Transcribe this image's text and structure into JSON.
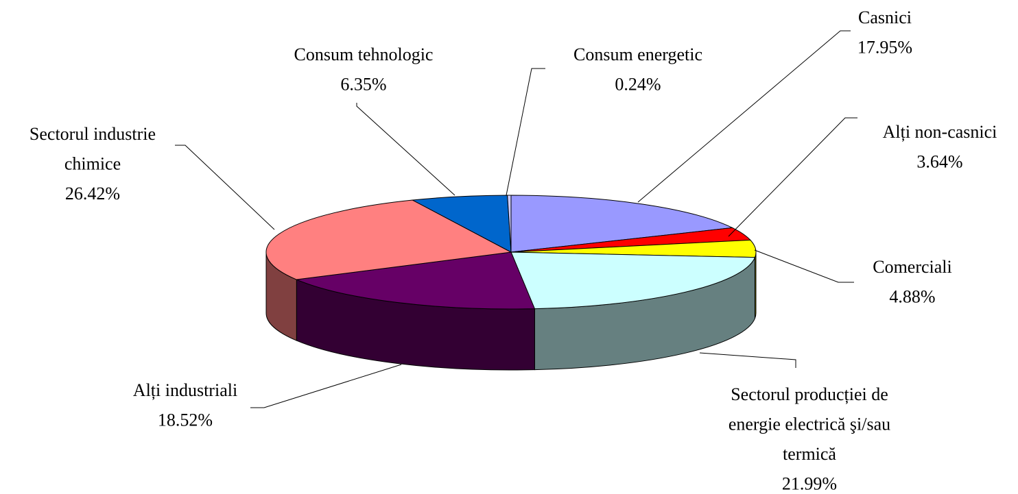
{
  "chart_data": {
    "type": "pie",
    "categories": [
      "Casnici",
      "Alți non-casnici",
      "Comerciali",
      "Sectorul producției de energie electrică şi/sau termică",
      "Alți industriali",
      "Sectorul industrie chimice",
      "Consum tehnologic",
      "Consum energetic"
    ],
    "values": [
      17.95,
      3.64,
      4.88,
      21.99,
      18.52,
      26.42,
      6.35,
      0.24
    ],
    "value_labels": [
      "17.95%",
      "3.64%",
      "4.88%",
      "21.99%",
      "18.52%",
      "26.42%",
      "6.35%",
      "0.24%"
    ],
    "colors": [
      "#9999ff",
      "#ff0000",
      "#ffff00",
      "#ccffff",
      "#660066",
      "#ff8080",
      "#0066cc",
      "#ccccff"
    ]
  }
}
